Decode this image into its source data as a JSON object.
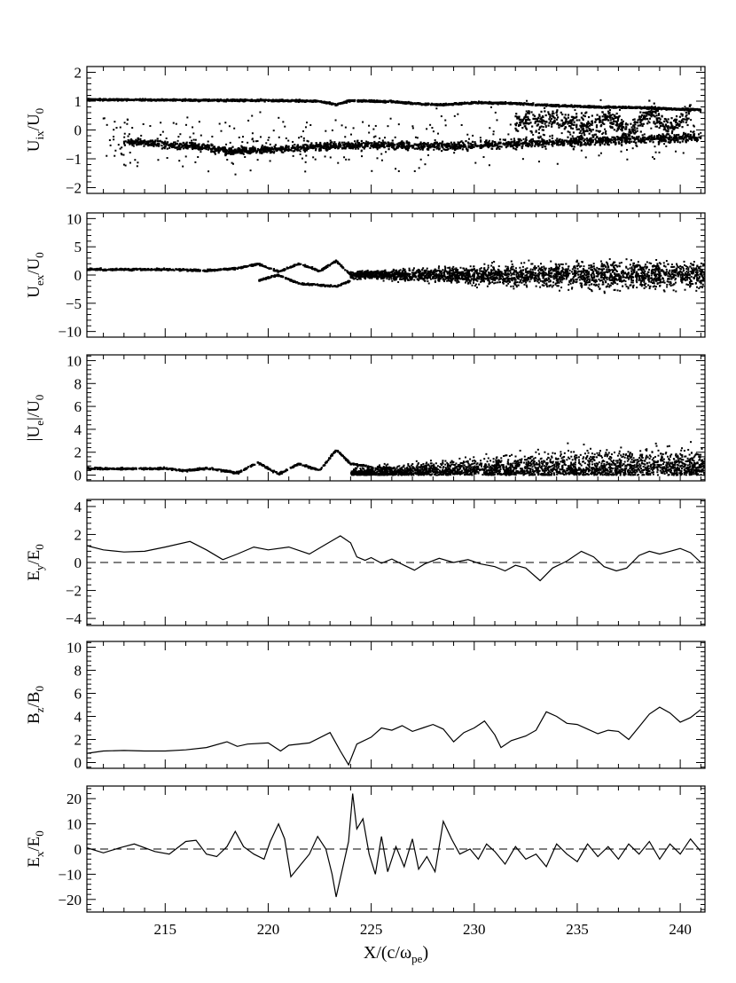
{
  "chart_data": [
    {
      "type": "scatter",
      "ylabel": {
        "base": "U",
        "sub": "ix",
        "den_base": "U",
        "den_sub": "0"
      },
      "ylim": [
        -2.2,
        2.2
      ],
      "yticks": [
        -2,
        -1,
        0,
        1,
        2
      ],
      "yticklabels": [
        "−2",
        "−1",
        "0",
        "1",
        "2"
      ],
      "series": [
        {
          "values": [
            [
              211,
              1.05
            ],
            [
              213,
              1.05
            ],
            [
              215,
              1.04
            ],
            [
              217,
              1.03
            ],
            [
              219,
              1.03
            ],
            [
              221,
              1.02
            ],
            [
              222.5,
              1.0
            ],
            [
              223.3,
              0.88
            ],
            [
              224,
              1.02
            ],
            [
              226,
              0.98
            ],
            [
              227.5,
              0.9
            ],
            [
              228.5,
              0.88
            ],
            [
              230,
              0.95
            ],
            [
              232,
              0.92
            ],
            [
              234,
              0.85
            ],
            [
              236,
              0.8
            ],
            [
              238,
              0.78
            ],
            [
              240,
              0.72
            ],
            [
              241,
              0.7
            ]
          ]
        },
        {
          "values": [
            [
              213,
              -0.4
            ],
            [
              215,
              -0.5
            ],
            [
              217,
              -0.6
            ],
            [
              218,
              -0.75
            ],
            [
              219,
              -0.7
            ],
            [
              221,
              -0.65
            ],
            [
              223,
              -0.55
            ],
            [
              225,
              -0.5
            ],
            [
              227,
              -0.55
            ],
            [
              229,
              -0.55
            ],
            [
              231,
              -0.5
            ],
            [
              233,
              -0.45
            ],
            [
              235,
              -0.4
            ],
            [
              237,
              -0.35
            ],
            [
              239,
              -0.3
            ],
            [
              241,
              -0.25
            ]
          ]
        },
        {
          "values": [
            [
              232,
              0.3
            ],
            [
              234,
              0.4
            ],
            [
              235.5,
              0.1
            ],
            [
              236.5,
              0.5
            ],
            [
              237.5,
              -0.1
            ],
            [
              238.5,
              0.7
            ],
            [
              239.5,
              0.0
            ],
            [
              240.5,
              0.6
            ]
          ]
        }
      ]
    },
    {
      "type": "scatter",
      "ylabel": {
        "base": "U",
        "sub": "ex",
        "den_base": "U",
        "den_sub": "0"
      },
      "ylim": [
        -11,
        11
      ],
      "yticks": [
        -10,
        -5,
        0,
        5,
        10
      ],
      "yticklabels": [
        "−10",
        "−5",
        "0",
        "5",
        "10"
      ],
      "series": [
        {
          "values": [
            [
              211,
              1.0
            ],
            [
              213,
              1.0
            ],
            [
              215,
              1.0
            ],
            [
              217,
              0.8
            ],
            [
              218.5,
              1.2
            ],
            [
              219.5,
              2.0
            ],
            [
              220.5,
              0.6
            ],
            [
              221.5,
              2.0
            ],
            [
              222.5,
              0.7
            ],
            [
              223.3,
              2.5
            ],
            [
              224,
              0.0
            ],
            [
              225,
              0.5
            ],
            [
              226,
              0.0
            ]
          ]
        },
        {
          "values": [
            [
              219.5,
              -1.0
            ],
            [
              220.5,
              0.0
            ],
            [
              221.5,
              -1.5
            ],
            [
              223.3,
              -2.0
            ],
            [
              224,
              -1.0
            ]
          ]
        }
      ]
    },
    {
      "type": "scatter",
      "ylabel": {
        "base": "|U",
        "sub": "e",
        "mid": "|",
        "den_base": "U",
        "den_sub": "0"
      },
      "ylim": [
        -0.5,
        10.5
      ],
      "yticks": [
        0,
        2,
        4,
        6,
        8,
        10
      ],
      "yticklabels": [
        "0",
        "2",
        "4",
        "6",
        "8",
        "10"
      ],
      "series": [
        {
          "values": [
            [
              211,
              0.6
            ],
            [
              213,
              0.55
            ],
            [
              215,
              0.6
            ],
            [
              216,
              0.4
            ],
            [
              217,
              0.6
            ],
            [
              218.5,
              0.2
            ],
            [
              219.5,
              1.1
            ],
            [
              220.5,
              0.1
            ],
            [
              221.5,
              1.0
            ],
            [
              222.5,
              0.4
            ],
            [
              223.3,
              2.2
            ],
            [
              224,
              1.0
            ],
            [
              225,
              0.7
            ],
            [
              226,
              0.6
            ]
          ]
        }
      ]
    },
    {
      "type": "line",
      "ylabel": {
        "base": "E",
        "sub": "y",
        "den_base": "E",
        "den_sub": "0"
      },
      "ylim": [
        -4.5,
        4.5
      ],
      "yticks": [
        -4,
        -2,
        0,
        2,
        4
      ],
      "yticklabels": [
        "−4",
        "−2",
        "0",
        "2",
        "4"
      ],
      "zero_line": true,
      "series": [
        {
          "values": [
            [
              211.2,
              1.2
            ],
            [
              212,
              0.9
            ],
            [
              213,
              0.75
            ],
            [
              214,
              0.8
            ],
            [
              215,
              1.1
            ],
            [
              216.2,
              1.5
            ],
            [
              217,
              0.9
            ],
            [
              217.8,
              0.2
            ],
            [
              218.5,
              0.6
            ],
            [
              219.3,
              1.1
            ],
            [
              220,
              0.9
            ],
            [
              221,
              1.1
            ],
            [
              222,
              0.6
            ],
            [
              222.8,
              1.3
            ],
            [
              223.5,
              1.9
            ],
            [
              224,
              1.4
            ],
            [
              224.3,
              0.4
            ],
            [
              224.7,
              0.15
            ],
            [
              225,
              0.35
            ],
            [
              225.5,
              -0.05
            ],
            [
              226,
              0.25
            ],
            [
              226.6,
              -0.2
            ],
            [
              227.1,
              -0.55
            ],
            [
              227.6,
              -0.1
            ],
            [
              228.3,
              0.3
            ],
            [
              229,
              0.0
            ],
            [
              229.7,
              0.2
            ],
            [
              230.3,
              -0.1
            ],
            [
              231,
              -0.3
            ],
            [
              231.5,
              -0.6
            ],
            [
              232,
              -0.2
            ],
            [
              232.5,
              -0.4
            ],
            [
              233.2,
              -1.3
            ],
            [
              233.8,
              -0.4
            ],
            [
              234.5,
              0.1
            ],
            [
              235.2,
              0.8
            ],
            [
              235.8,
              0.4
            ],
            [
              236.3,
              -0.3
            ],
            [
              236.9,
              -0.6
            ],
            [
              237.4,
              -0.4
            ],
            [
              238,
              0.5
            ],
            [
              238.5,
              0.8
            ],
            [
              239,
              0.6
            ],
            [
              239.5,
              0.8
            ],
            [
              240,
              1.0
            ],
            [
              240.5,
              0.7
            ],
            [
              241,
              0.0
            ]
          ]
        }
      ]
    },
    {
      "type": "line",
      "ylabel": {
        "base": "B",
        "sub": "z",
        "den_base": "B",
        "den_sub": "0"
      },
      "ylim": [
        -0.5,
        10.5
      ],
      "yticks": [
        0,
        2,
        4,
        6,
        8,
        10
      ],
      "yticklabels": [
        "0",
        "2",
        "4",
        "6",
        "8",
        "10"
      ],
      "series": [
        {
          "values": [
            [
              211.2,
              0.8
            ],
            [
              212,
              1.0
            ],
            [
              213,
              1.05
            ],
            [
              214,
              1.0
            ],
            [
              215,
              1.0
            ],
            [
              216,
              1.1
            ],
            [
              217,
              1.3
            ],
            [
              218,
              1.8
            ],
            [
              218.5,
              1.4
            ],
            [
              219,
              1.6
            ],
            [
              220,
              1.7
            ],
            [
              220.6,
              1.0
            ],
            [
              221,
              1.5
            ],
            [
              222,
              1.7
            ],
            [
              223,
              2.6
            ],
            [
              223.5,
              1.0
            ],
            [
              223.9,
              -0.2
            ],
            [
              224.3,
              1.6
            ],
            [
              225,
              2.2
            ],
            [
              225.5,
              3.0
            ],
            [
              226,
              2.8
            ],
            [
              226.5,
              3.2
            ],
            [
              227,
              2.7
            ],
            [
              227.5,
              3.0
            ],
            [
              228,
              3.3
            ],
            [
              228.5,
              2.9
            ],
            [
              229,
              1.8
            ],
            [
              229.5,
              2.6
            ],
            [
              230,
              3.0
            ],
            [
              230.5,
              3.6
            ],
            [
              231,
              2.4
            ],
            [
              231.3,
              1.3
            ],
            [
              231.8,
              1.9
            ],
            [
              232.5,
              2.3
            ],
            [
              233,
              2.8
            ],
            [
              233.5,
              4.4
            ],
            [
              234,
              4.0
            ],
            [
              234.5,
              3.4
            ],
            [
              235,
              3.3
            ],
            [
              235.5,
              2.9
            ],
            [
              236,
              2.5
            ],
            [
              236.5,
              2.8
            ],
            [
              237,
              2.7
            ],
            [
              237.5,
              2.0
            ],
            [
              238,
              3.1
            ],
            [
              238.5,
              4.2
            ],
            [
              239,
              4.8
            ],
            [
              239.5,
              4.3
            ],
            [
              240,
              3.5
            ],
            [
              240.5,
              3.9
            ],
            [
              241,
              4.6
            ]
          ]
        }
      ]
    },
    {
      "type": "line",
      "ylabel": {
        "base": "E",
        "sub": "x",
        "den_base": "E",
        "den_sub": "0"
      },
      "ylim": [
        -25,
        25
      ],
      "yticks": [
        -20,
        -10,
        0,
        10,
        20
      ],
      "yticklabels": [
        "−20",
        "−10",
        "0",
        "10",
        "20"
      ],
      "zero_line": true,
      "xlabel": {
        "base": "X/(c/ω",
        "sub": "pe",
        "tail": ")"
      },
      "xlim": [
        211.2,
        241.2
      ],
      "xticks": [
        215,
        220,
        225,
        230,
        235,
        240
      ],
      "xticklabels": [
        "215",
        "220",
        "225",
        "230",
        "235",
        "240"
      ],
      "series": [
        {
          "values": [
            [
              211.2,
              0.5
            ],
            [
              212,
              -1.5
            ],
            [
              212.8,
              0.5
            ],
            [
              213.5,
              2
            ],
            [
              214.5,
              -1
            ],
            [
              215.2,
              -2
            ],
            [
              216,
              3
            ],
            [
              216.5,
              3.5
            ],
            [
              217,
              -2
            ],
            [
              217.5,
              -3
            ],
            [
              218,
              1
            ],
            [
              218.4,
              7
            ],
            [
              218.8,
              1
            ],
            [
              219.3,
              -2
            ],
            [
              219.8,
              -4
            ],
            [
              220.1,
              3
            ],
            [
              220.5,
              10
            ],
            [
              220.8,
              4
            ],
            [
              221.1,
              -11
            ],
            [
              221.6,
              -6
            ],
            [
              222,
              -2
            ],
            [
              222.4,
              5
            ],
            [
              222.8,
              0
            ],
            [
              223.1,
              -10
            ],
            [
              223.3,
              -19
            ],
            [
              223.6,
              -8
            ],
            [
              223.9,
              3
            ],
            [
              224.1,
              22
            ],
            [
              224.3,
              8
            ],
            [
              224.6,
              12
            ],
            [
              224.9,
              -2
            ],
            [
              225.2,
              -10
            ],
            [
              225.5,
              5
            ],
            [
              225.8,
              -9
            ],
            [
              226.2,
              1
            ],
            [
              226.6,
              -7
            ],
            [
              227,
              4
            ],
            [
              227.3,
              -8
            ],
            [
              227.7,
              -3
            ],
            [
              228.1,
              -9
            ],
            [
              228.5,
              11
            ],
            [
              228.9,
              4
            ],
            [
              229.3,
              -2
            ],
            [
              229.8,
              0
            ],
            [
              230.2,
              -4
            ],
            [
              230.6,
              2
            ],
            [
              231,
              -1
            ],
            [
              231.5,
              -6
            ],
            [
              232,
              1
            ],
            [
              232.5,
              -4
            ],
            [
              233,
              -2
            ],
            [
              233.5,
              -7
            ],
            [
              234,
              2
            ],
            [
              234.5,
              -2
            ],
            [
              235,
              -5
            ],
            [
              235.5,
              2
            ],
            [
              236,
              -3
            ],
            [
              236.5,
              1
            ],
            [
              237,
              -4
            ],
            [
              237.5,
              2
            ],
            [
              238,
              -2
            ],
            [
              238.5,
              3
            ],
            [
              239,
              -4
            ],
            [
              239.5,
              2
            ],
            [
              240,
              -2
            ],
            [
              240.5,
              4
            ],
            [
              241,
              -1
            ]
          ]
        }
      ]
    }
  ]
}
